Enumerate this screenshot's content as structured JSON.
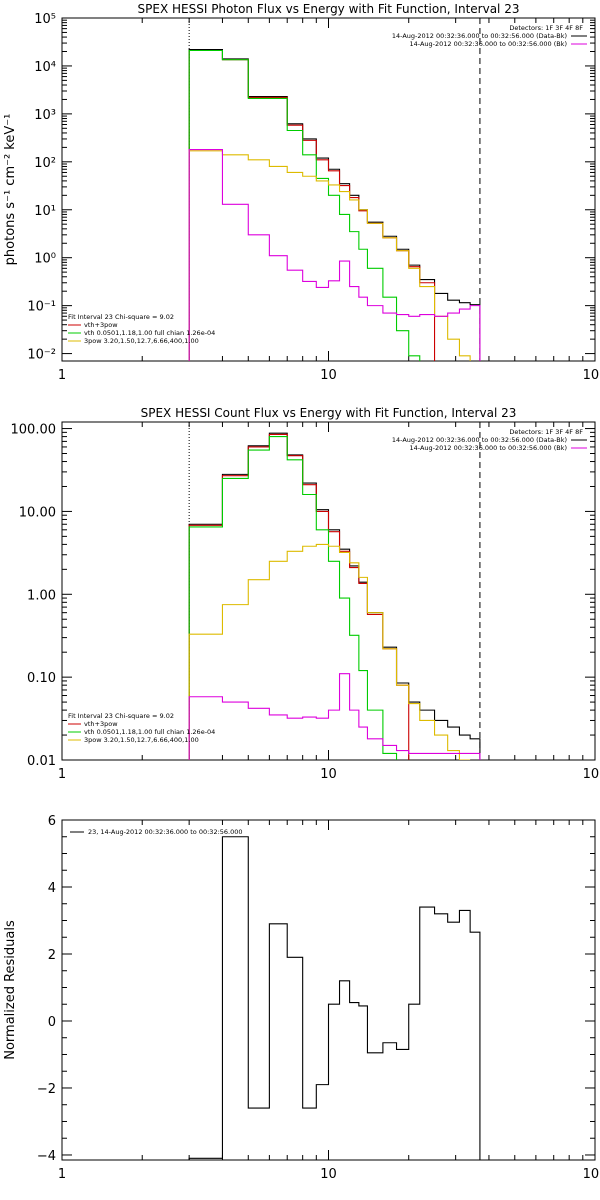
{
  "chart_data": [
    {
      "type": "line",
      "title": "SPEX HESSI Photon Flux vs Energy with Fit Function, Interval 23",
      "xlabel": "",
      "ylabel": "photons s⁻¹ cm⁻² keV⁻¹",
      "xscale": "log",
      "yscale": "log",
      "xlim": [
        1,
        100
      ],
      "ylim": [
        0.007,
        100000
      ],
      "xticks": [
        1,
        10,
        100
      ],
      "xticklabels": [
        "1",
        "10",
        "100"
      ],
      "yticks": [
        0.01,
        0.1,
        1,
        10,
        100,
        1000,
        10000,
        100000
      ],
      "yticklabels": [
        "10⁻²",
        "10⁻¹",
        "10⁰",
        "10¹",
        "10²",
        "10³",
        "10⁴",
        "10⁵"
      ],
      "vlines": [
        {
          "x": 3,
          "style": "dotted"
        },
        {
          "x": 37,
          "style": "dashed"
        }
      ],
      "legend_tr": [
        "Detectors: 1F 3F 4F 8F",
        "14-Aug-2012 00:32:36.000 to 00:32:56.000 (Data-Bk)",
        "14-Aug-2012 00:32:36.000 to 00:32:56.000 (Bk)"
      ],
      "legend_bl": [
        "Fit Interval 23   Chi-square = 9.02",
        "vth+3pow",
        "vth 0.0501,1.18,1.00  full chian 1.26e-04",
        "3pow 3.20,1.50,12.7,6.66,400,1.00"
      ],
      "edges": [
        3,
        4,
        5,
        6,
        7,
        8,
        9,
        10,
        11,
        12,
        13,
        14,
        16,
        18,
        20,
        22,
        25,
        28,
        31,
        34,
        37
      ],
      "series": [
        {
          "name": "Data-Bk",
          "color": "#000000",
          "values": [
            22000,
            14000,
            2300,
            2300,
            620,
            300,
            120,
            70,
            35,
            20,
            10,
            5.5,
            2.8,
            1.5,
            0.7,
            0.35,
            0.18,
            0.13,
            0.115,
            0.105
          ]
        },
        {
          "name": "vth+3pow",
          "color": "#cc0000",
          "values": [
            21000,
            13500,
            2200,
            2200,
            580,
            280,
            110,
            65,
            32,
            18,
            9.5,
            5.2,
            2.6,
            1.4,
            0.65,
            0.3
          ]
        },
        {
          "name": "vth",
          "color": "#00cc00",
          "values": [
            21000,
            13500,
            2100,
            2100,
            450,
            140,
            45,
            20,
            8,
            3.5,
            1.5,
            0.6,
            0.15,
            0.03,
            0.009
          ]
        },
        {
          "name": "3pow",
          "color": "#ddbb00",
          "values": [
            170,
            140,
            110,
            80,
            60,
            50,
            40,
            33,
            24,
            16,
            10,
            5.2,
            2.6,
            1.4,
            0.6,
            0.25,
            0.06,
            0.02,
            0.009
          ]
        },
        {
          "name": "Bk",
          "color": "#dd00dd",
          "values": [
            180,
            13,
            3,
            1.1,
            0.55,
            0.32,
            0.24,
            0.33,
            0.85,
            0.25,
            0.15,
            0.1,
            0.07,
            0.065,
            0.06,
            0.065,
            0.06,
            0.07,
            0.085,
            0.1
          ]
        }
      ]
    },
    {
      "type": "line",
      "title": "SPEX HESSI Count Flux vs Energy with Fit Function, Interval 23",
      "xlabel": "",
      "ylabel": "",
      "xscale": "log",
      "yscale": "log",
      "xlim": [
        1,
        100
      ],
      "ylim": [
        0.01,
        120
      ],
      "xticks": [
        1,
        10,
        100
      ],
      "xticklabels": [
        "1",
        "10",
        "100"
      ],
      "yticks": [
        0.01,
        0.1,
        1,
        10,
        100
      ],
      "yticklabels": [
        "0.01",
        "0.10",
        "1.00",
        "10.00",
        "100.00"
      ],
      "vlines": [
        {
          "x": 3,
          "style": "dotted"
        },
        {
          "x": 37,
          "style": "dashed"
        }
      ],
      "legend_tr": [
        "Detectors: 1F 3F 4F 8F",
        "14-Aug-2012 00:32:36.000 to 00:32:56.000 (Data-Bk)",
        "14-Aug-2012 00:32:36.000 to 00:32:56.000 (Bk)"
      ],
      "legend_bl": [
        "Fit Interval 23   Chi-square = 9.02",
        "vth+3pow",
        "vth 0.0501,1.18,1.00  full chian 1.26e-04",
        "3pow 3.20,1.50,12.7,6.66,400,1.00"
      ],
      "edges": [
        3,
        4,
        5,
        6,
        7,
        8,
        9,
        10,
        11,
        12,
        13,
        14,
        16,
        18,
        20,
        22,
        25,
        28,
        31,
        34,
        37
      ],
      "series": [
        {
          "name": "Data-Bk",
          "color": "#000000",
          "values": [
            7,
            28,
            62,
            88,
            48,
            22,
            10.5,
            6,
            3.5,
            2.2,
            1.4,
            0.6,
            0.23,
            0.085,
            0.05,
            0.04,
            0.03,
            0.025,
            0.02,
            0.018
          ]
        },
        {
          "name": "vth+3pow",
          "color": "#cc0000",
          "values": [
            6.8,
            27,
            60,
            85,
            47,
            21,
            10,
            5.7,
            3.3,
            2.1,
            1.35,
            0.57,
            0.22,
            0.08
          ]
        },
        {
          "name": "vth",
          "color": "#00cc00",
          "values": [
            6.5,
            25,
            55,
            80,
            42,
            16,
            6,
            2.5,
            0.9,
            0.32,
            0.12,
            0.04,
            0.012
          ]
        },
        {
          "name": "3pow",
          "color": "#ddbb00",
          "values": [
            0.33,
            0.75,
            1.5,
            2.5,
            3.3,
            3.8,
            4,
            3.8,
            3.2,
            2.4,
            1.6,
            0.6,
            0.22,
            0.08,
            0.048,
            0.03,
            0.02,
            0.013,
            0.01
          ]
        },
        {
          "name": "Bk",
          "color": "#dd00dd",
          "values": [
            0.058,
            0.05,
            0.042,
            0.035,
            0.032,
            0.033,
            0.032,
            0.04,
            0.11,
            0.04,
            0.025,
            0.018,
            0.015,
            0.013,
            0.012,
            0.012,
            0.012,
            0.012,
            0.012,
            0.012
          ]
        }
      ]
    },
    {
      "type": "line",
      "title": "",
      "xlabel": "",
      "ylabel": "Normalized Residuals",
      "xscale": "log",
      "yscale": "linear",
      "xlim": [
        1,
        100
      ],
      "ylim": [
        -4.15,
        6
      ],
      "xticks": [
        1,
        10,
        100
      ],
      "xticklabels": [
        "1",
        "10",
        "100"
      ],
      "yticks": [
        -4,
        -2,
        0,
        2,
        4,
        6
      ],
      "yticklabels": [
        "−4",
        "−2",
        "0",
        "2",
        "4",
        "6"
      ],
      "legend_tl": [
        "23, 14-Aug-2012 00:32:36.000 to 00:32:56.000"
      ],
      "edges": [
        3,
        4,
        5,
        6,
        7,
        8,
        9,
        10,
        11,
        12,
        13,
        14,
        16,
        18,
        20,
        22,
        25,
        28,
        31,
        34,
        37
      ],
      "series": [
        {
          "name": "",
          "color": "#000000",
          "values": [
            -4.1,
            5.5,
            -2.6,
            2.9,
            1.9,
            -2.6,
            -1.9,
            0.5,
            1.2,
            0.55,
            0.45,
            -0.95,
            -0.65,
            -0.85,
            0.5,
            3.4,
            3.2,
            2.95,
            3.3,
            2.65
          ]
        }
      ]
    }
  ]
}
